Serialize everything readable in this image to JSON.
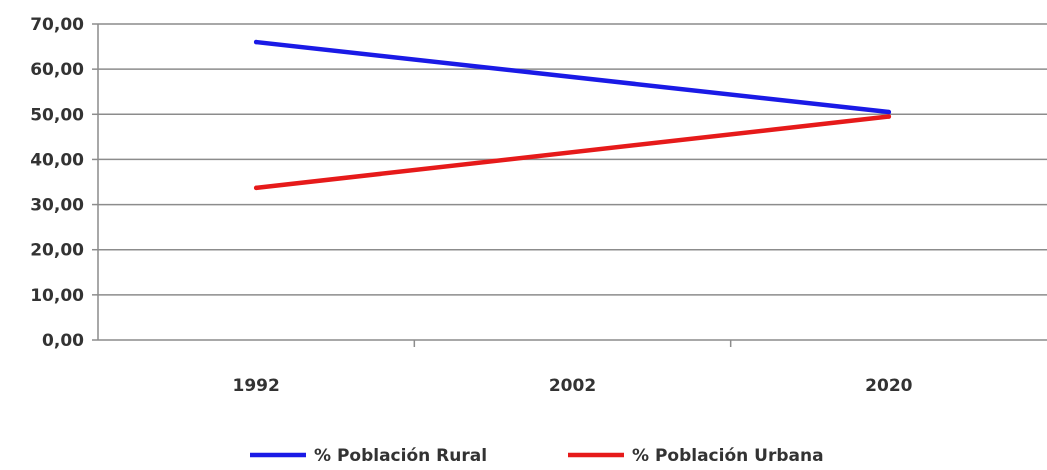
{
  "chart_data": {
    "type": "line",
    "title": "",
    "xlabel": "",
    "ylabel": "",
    "categories": [
      "1992",
      "2002",
      "2020"
    ],
    "x": [
      "1992",
      "2002",
      "2020"
    ],
    "ylim": [
      0,
      70
    ],
    "ytick_values": [
      0,
      10,
      20,
      30,
      40,
      50,
      60,
      70
    ],
    "ytick_labels": [
      "0,00",
      "10,00",
      "20,00",
      "30,00",
      "40,00",
      "50,00",
      "60,00",
      "70,00"
    ],
    "grid": true,
    "legend_position": "bottom",
    "series": [
      {
        "name": "% Población Rural",
        "color": "#1a1ae6",
        "points": [
          {
            "x": "1992",
            "y": 66.0
          },
          {
            "x": "2020",
            "y": 50.5
          }
        ]
      },
      {
        "name": "% Población Urbana",
        "color": "#e61a1a",
        "points": [
          {
            "x": "1992",
            "y": 33.7
          },
          {
            "x": "2020",
            "y": 49.5
          }
        ]
      }
    ]
  }
}
